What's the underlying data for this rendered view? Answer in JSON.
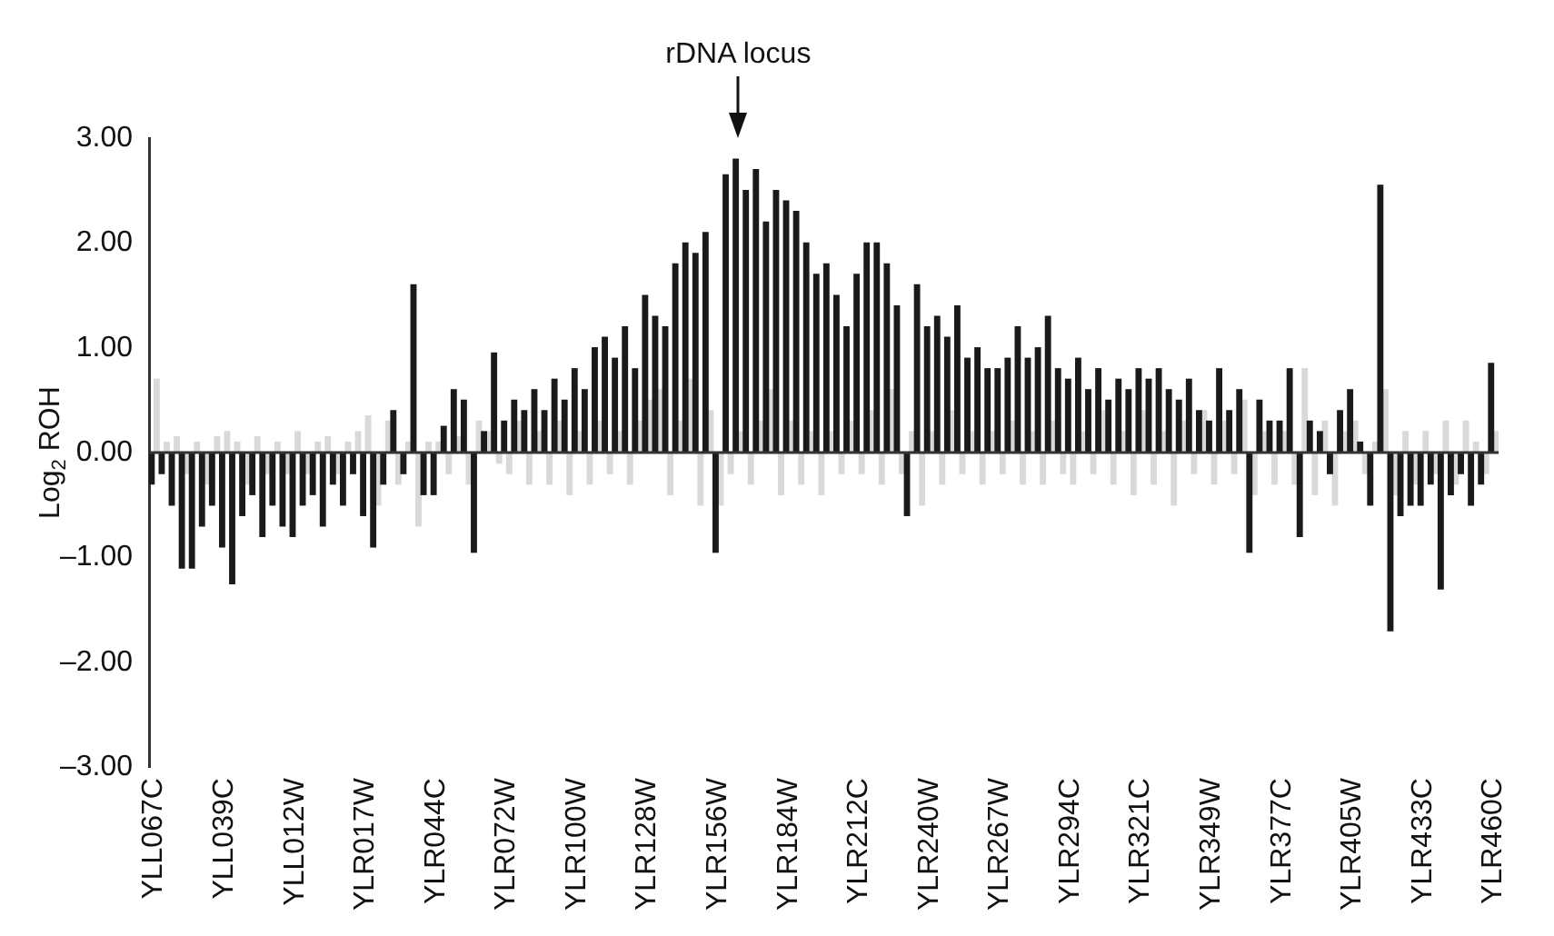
{
  "chart_data": {
    "type": "bar",
    "ylabel": "Log$_{2}$ ROH",
    "categories": [
      "YLL067C",
      null,
      null,
      null,
      null,
      null,
      null,
      "YLL039C",
      null,
      null,
      null,
      null,
      null,
      null,
      "YLL012W",
      null,
      null,
      null,
      null,
      null,
      null,
      "YLR017W",
      null,
      null,
      null,
      null,
      null,
      null,
      "YLR044C",
      null,
      null,
      null,
      null,
      null,
      null,
      "YLR072W",
      null,
      null,
      null,
      null,
      null,
      null,
      "YLR100W",
      null,
      null,
      null,
      null,
      null,
      null,
      "YLR128W",
      null,
      null,
      null,
      null,
      null,
      null,
      "YLR156W",
      null,
      null,
      null,
      null,
      null,
      null,
      "YLR184W",
      null,
      null,
      null,
      null,
      null,
      null,
      "YLR212C",
      null,
      null,
      null,
      null,
      null,
      null,
      "YLR240W",
      null,
      null,
      null,
      null,
      null,
      null,
      "YLR267W",
      null,
      null,
      null,
      null,
      null,
      null,
      "YLR294C",
      null,
      null,
      null,
      null,
      null,
      null,
      "YLR321C",
      null,
      null,
      null,
      null,
      null,
      null,
      "YLR349W",
      null,
      null,
      null,
      null,
      null,
      null,
      "YLR377C",
      null,
      null,
      null,
      null,
      null,
      null,
      "YLR405W",
      null,
      null,
      null,
      null,
      null,
      null,
      "YLR433C",
      null,
      null,
      null,
      null,
      null,
      null,
      "YLR460C"
    ],
    "series": [
      {
        "color": "#1a1a1a",
        "values": [
          -0.3,
          -0.2,
          -0.5,
          -1.1,
          -1.1,
          -0.7,
          -0.5,
          -0.9,
          -1.25,
          -0.6,
          -0.4,
          -0.8,
          -0.5,
          -0.7,
          -0.8,
          -0.5,
          -0.4,
          -0.7,
          -0.3,
          -0.5,
          -0.2,
          -0.6,
          -0.9,
          -0.3,
          0.4,
          -0.2,
          1.6,
          -0.4,
          -0.4,
          0.25,
          0.6,
          0.5,
          -0.95,
          0.2,
          0.95,
          0.3,
          0.5,
          0.4,
          0.6,
          0.4,
          0.7,
          0.5,
          0.8,
          0.6,
          1.0,
          1.1,
          0.9,
          1.2,
          0.8,
          1.5,
          1.3,
          1.2,
          1.8,
          2.0,
          1.9,
          2.1,
          -0.95,
          2.65,
          2.8,
          2.5,
          2.7,
          2.2,
          2.5,
          2.4,
          2.3,
          2.0,
          1.7,
          1.8,
          1.5,
          1.2,
          1.7,
          2.0,
          2.0,
          1.8,
          1.4,
          -0.6,
          1.6,
          1.2,
          1.3,
          1.1,
          1.4,
          0.9,
          1.0,
          0.8,
          0.8,
          0.9,
          1.2,
          0.9,
          1.0,
          1.3,
          0.8,
          0.7,
          0.9,
          0.6,
          0.8,
          0.5,
          0.7,
          0.6,
          0.8,
          0.7,
          0.8,
          0.6,
          0.5,
          0.7,
          0.4,
          0.3,
          0.8,
          0.4,
          0.6,
          -0.95,
          0.5,
          0.3,
          0.3,
          0.8,
          -0.8,
          0.3,
          0.2,
          -0.2,
          0.4,
          0.6,
          0.1,
          -0.5,
          2.55,
          -1.7,
          -0.6,
          -0.5,
          -0.5,
          -0.3,
          -1.3,
          -0.4,
          -0.2,
          -0.5,
          -0.3,
          0.85
        ]
      },
      {
        "color": "#d9d9d9",
        "values": [
          0.7,
          0.1,
          0.15,
          -0.2,
          0.1,
          -0.3,
          0.15,
          0.2,
          0.1,
          -0.3,
          0.15,
          -0.2,
          0.1,
          -0.2,
          0.2,
          -0.2,
          0.1,
          0.15,
          -0.2,
          0.1,
          0.2,
          0.35,
          -0.5,
          0.3,
          -0.3,
          0.1,
          -0.7,
          0.1,
          0.1,
          -0.2,
          0.15,
          -0.3,
          0.3,
          0.2,
          -0.1,
          -0.2,
          0.3,
          -0.3,
          0.2,
          -0.3,
          0.3,
          -0.4,
          0.2,
          -0.3,
          0.3,
          -0.2,
          0.2,
          -0.3,
          0.3,
          0.5,
          0.6,
          -0.4,
          0.3,
          0.7,
          -0.5,
          0.4,
          -0.5,
          -0.2,
          0.2,
          -0.3,
          0.3,
          0.6,
          -0.4,
          0.3,
          -0.3,
          0.2,
          -0.4,
          0.2,
          -0.2,
          0.3,
          -0.2,
          0.4,
          -0.3,
          0.6,
          -0.2,
          0.2,
          -0.5,
          0.2,
          -0.3,
          0.4,
          -0.2,
          0.2,
          -0.3,
          0.2,
          -0.2,
          0.3,
          -0.3,
          0.2,
          -0.3,
          0.3,
          -0.2,
          -0.3,
          0.2,
          -0.2,
          0.4,
          -0.3,
          0.2,
          -0.4,
          0.4,
          -0.3,
          0.2,
          -0.5,
          0.3,
          -0.2,
          0.4,
          -0.3,
          0.3,
          -0.2,
          0.5,
          -0.4,
          0.2,
          -0.3,
          0.2,
          -0.3,
          0.8,
          -0.4,
          0.3,
          -0.5,
          0.2,
          0.3,
          -0.2,
          0.1,
          0.6,
          -0.4,
          0.2,
          -0.3,
          0.2,
          -0.2,
          0.3,
          -0.3,
          0.3,
          0.1,
          -0.2,
          0.2
        ]
      }
    ],
    "ylim": [
      -3,
      3
    ],
    "yticks": [
      {
        "value": -3,
        "label": "–3.00"
      },
      {
        "value": -2,
        "label": "–2.00"
      },
      {
        "value": -1,
        "label": "–1.00"
      },
      {
        "value": 0,
        "label": "0.00"
      },
      {
        "value": 1,
        "label": "1.00"
      },
      {
        "value": 2,
        "label": "2.00"
      },
      {
        "value": 3,
        "label": "3.00"
      }
    ],
    "annotations": [
      "rDNA locus"
    ]
  }
}
